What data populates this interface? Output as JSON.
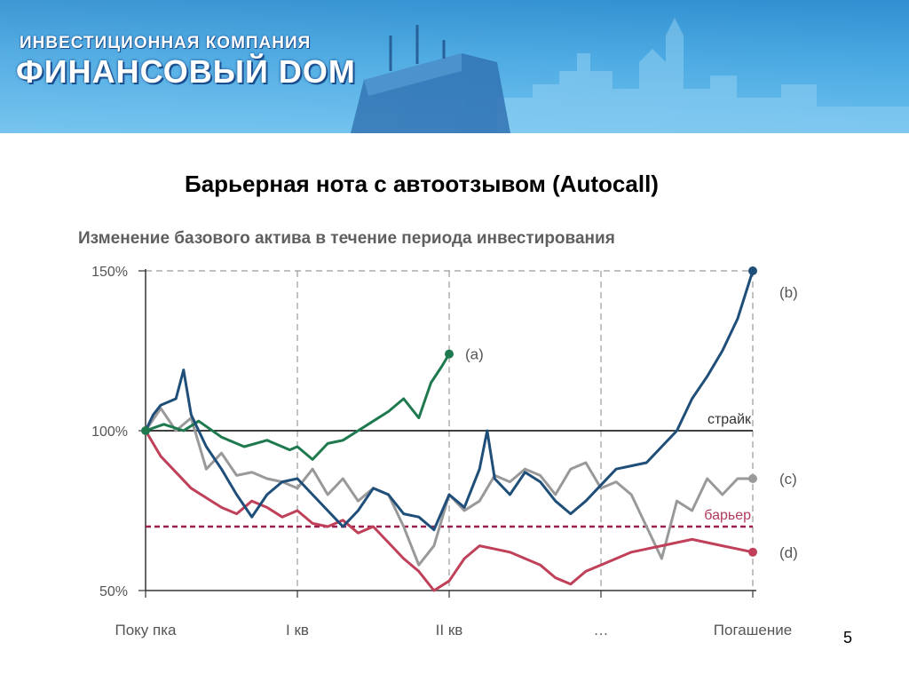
{
  "header": {
    "company_line1": "ИНВЕСТИЦИОННАЯ КОМПАНИЯ",
    "company_line2": "ФИНАНСОВЫЙ DОМ"
  },
  "slide": {
    "title": "Барьерная нота с автоотзывом (Autocall)",
    "page_number": "5"
  },
  "chart_data": {
    "type": "line",
    "title": "Изменение базового актива в течение периода инвестирования",
    "ylim": [
      50,
      150
    ],
    "yticks": [
      50,
      100,
      150
    ],
    "ytick_labels": [
      "50%",
      "100%",
      "150%"
    ],
    "xlim": [
      0,
      4
    ],
    "xticks": [
      0,
      1,
      2,
      3,
      4
    ],
    "xtick_labels": [
      "Поку пка",
      "I кв",
      "II кв",
      "…",
      "Погашение"
    ],
    "grid": "dashed vertical at quarters",
    "reference_lines": [
      {
        "name": "страйк",
        "value": 100,
        "color": "#000000",
        "style": "solid"
      },
      {
        "name": "барьер",
        "value": 70,
        "color": "#9b1f4f",
        "style": "dashed"
      }
    ],
    "series": [
      {
        "label": "(a)",
        "color": "#1e7a4e",
        "x": [
          0,
          0.12,
          0.25,
          0.35,
          0.5,
          0.65,
          0.8,
          0.95,
          1.0,
          1.1,
          1.2,
          1.3,
          1.4,
          1.5,
          1.6,
          1.7,
          1.8,
          1.88,
          1.95,
          2.0
        ],
        "y": [
          100,
          102,
          100,
          103,
          98,
          95,
          97,
          94,
          95,
          91,
          96,
          97,
          100,
          103,
          106,
          110,
          104,
          115,
          120,
          124
        ]
      },
      {
        "label": "(b)",
        "color": "#1f4e79",
        "x": [
          0,
          0.05,
          0.1,
          0.2,
          0.25,
          0.3,
          0.4,
          0.5,
          0.6,
          0.7,
          0.8,
          0.9,
          1.0,
          1.1,
          1.2,
          1.3,
          1.4,
          1.5,
          1.6,
          1.7,
          1.8,
          1.9,
          2.0,
          2.1,
          2.2,
          2.25,
          2.3,
          2.4,
          2.5,
          2.6,
          2.7,
          2.8,
          2.9,
          3.0,
          3.1,
          3.2,
          3.3,
          3.4,
          3.5,
          3.6,
          3.7,
          3.8,
          3.9,
          4.0
        ],
        "y": [
          100,
          105,
          108,
          110,
          119,
          105,
          95,
          88,
          80,
          73,
          80,
          84,
          85,
          80,
          75,
          70,
          75,
          82,
          80,
          74,
          73,
          69,
          80,
          76,
          88,
          100,
          85,
          80,
          87,
          84,
          78,
          74,
          78,
          83,
          88,
          89,
          90,
          95,
          100,
          110,
          117,
          125,
          135,
          150
        ]
      },
      {
        "label": "(c)",
        "color": "#999999",
        "x": [
          0,
          0.1,
          0.2,
          0.3,
          0.4,
          0.5,
          0.6,
          0.7,
          0.8,
          0.9,
          1.0,
          1.1,
          1.2,
          1.3,
          1.4,
          1.5,
          1.6,
          1.7,
          1.8,
          1.9,
          2.0,
          2.1,
          2.2,
          2.3,
          2.4,
          2.5,
          2.6,
          2.7,
          2.8,
          2.9,
          3.0,
          3.1,
          3.2,
          3.3,
          3.4,
          3.5,
          3.6,
          3.7,
          3.8,
          3.9,
          4.0
        ],
        "y": [
          100,
          107,
          100,
          104,
          88,
          93,
          86,
          87,
          85,
          84,
          82,
          88,
          80,
          85,
          78,
          82,
          80,
          70,
          58,
          64,
          80,
          75,
          78,
          86,
          84,
          88,
          86,
          80,
          88,
          90,
          82,
          84,
          80,
          70,
          60,
          78,
          75,
          85,
          80,
          85,
          85
        ]
      },
      {
        "label": "(d)",
        "color": "#c0405a",
        "x": [
          0,
          0.1,
          0.2,
          0.3,
          0.4,
          0.5,
          0.6,
          0.7,
          0.8,
          0.9,
          1.0,
          1.1,
          1.2,
          1.3,
          1.4,
          1.5,
          1.6,
          1.7,
          1.8,
          1.9,
          2.0,
          2.1,
          2.2,
          2.3,
          2.4,
          2.5,
          2.6,
          2.7,
          2.8,
          2.9,
          3.0,
          3.1,
          3.2,
          3.3,
          3.4,
          3.5,
          3.6,
          3.7,
          3.8,
          3.9,
          4.0
        ],
        "y": [
          100,
          92,
          87,
          82,
          79,
          76,
          74,
          78,
          76,
          73,
          75,
          71,
          70,
          72,
          68,
          70,
          65,
          60,
          56,
          50,
          53,
          60,
          64,
          63,
          62,
          60,
          58,
          54,
          52,
          56,
          58,
          60,
          62,
          63,
          64,
          65,
          66,
          65,
          64,
          63,
          62
        ]
      }
    ]
  }
}
